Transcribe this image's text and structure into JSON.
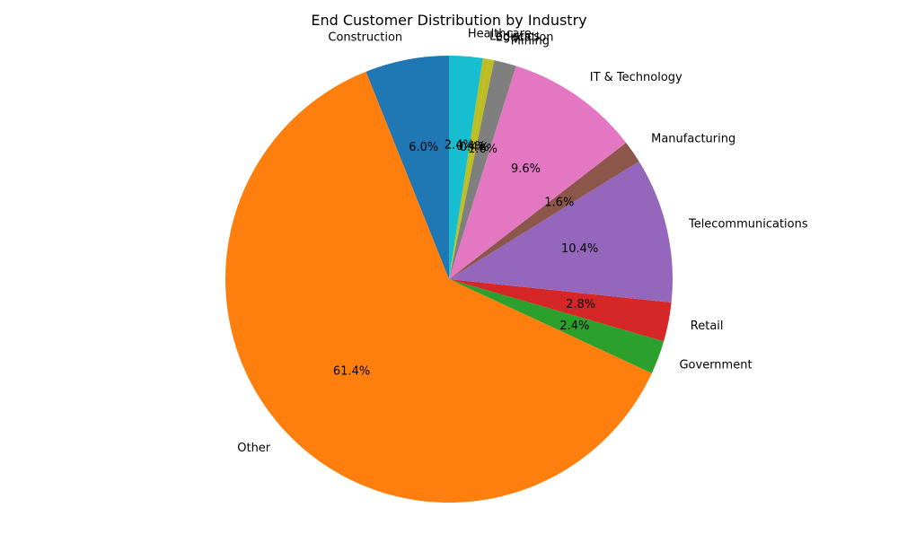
{
  "chart_data": {
    "type": "pie",
    "title": "End Customer Distribution by Industry",
    "start_angle_deg": 90,
    "direction": "counterclockwise",
    "categories": [
      "Construction",
      "Other",
      "Government",
      "Retail",
      "Telecommunications",
      "Manufacturing",
      "IT & Technology",
      "Mining",
      "Education",
      "Logistics",
      "Healthcare"
    ],
    "values": [
      6.0,
      61.4,
      2.4,
      2.8,
      10.4,
      1.6,
      9.6,
      1.6,
      0.4,
      0.4,
      2.4
    ],
    "value_labels": [
      "6.0%",
      "61.4%",
      "2.4%",
      "2.8%",
      "10.4%",
      "1.6%",
      "9.6%",
      "1.6%",
      "0.4%",
      "0.4%",
      "2.4%"
    ],
    "colors": [
      "#1f77b4",
      "#ff7f0e",
      "#2ca02c",
      "#d62728",
      "#9467bd",
      "#8c564b",
      "#e377c2",
      "#7f7f7f",
      "#bcbd22",
      "#bcbd22",
      "#17becf"
    ],
    "legend": "none"
  }
}
